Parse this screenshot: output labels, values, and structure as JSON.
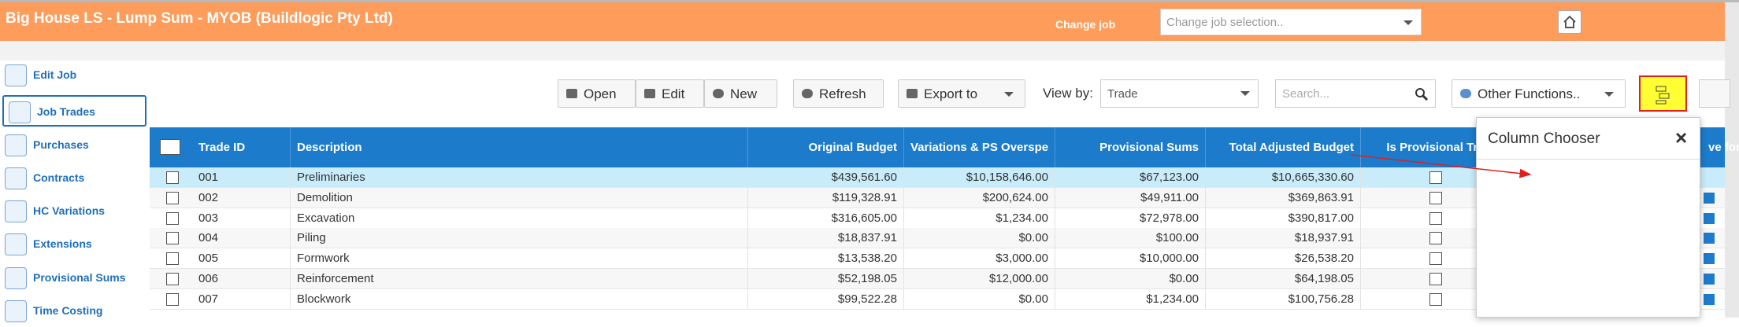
{
  "header": {
    "title": "Big House LS - Lump Sum - MYOB (Buildlogic Pty Ltd)",
    "change_job_label": "Change job",
    "job_select_placeholder": "Change job selection.."
  },
  "sidebar": {
    "items": [
      "Edit Job",
      "Job Trades",
      "Purchases",
      "Contracts",
      "HC Variations",
      "Extensions",
      "Provisional Sums",
      "Time Costing"
    ]
  },
  "toolbar": {
    "open": "Open",
    "edit": "Edit",
    "new": "New",
    "refresh": "Refresh",
    "export": "Export to",
    "view_by_label": "View by:",
    "view_by_value": "Trade",
    "search_placeholder": "Search...",
    "other_functions": "Other Functions.."
  },
  "table": {
    "columns": [
      "Trade ID",
      "Description",
      "Original Budget",
      "Variations & PS Overspe",
      "Provisional Sums",
      "Total Adjusted Budget",
      "Is Provisional Tra",
      "ve for T"
    ],
    "rows": [
      [
        "001",
        "Preliminaries",
        "$439,561.60",
        "$10,158,646.00",
        "$67,123.00",
        "$10,665,330.60"
      ],
      [
        "002",
        "Demolition",
        "$119,328.91",
        "$200,624.00",
        "$49,911.00",
        "$369,863.91"
      ],
      [
        "003",
        "Excavation",
        "$316,605.00",
        "$1,234.00",
        "$72,978.00",
        "$390,817.00"
      ],
      [
        "004",
        "Piling",
        "$18,837.91",
        "$0.00",
        "$100.00",
        "$18,937.91"
      ],
      [
        "005",
        "Formwork",
        "$13,538.20",
        "$3,000.00",
        "$10,000.00",
        "$26,538.20"
      ],
      [
        "006",
        "Reinforcement",
        "$52,198.05",
        "$12,000.00",
        "$0.00",
        "$64,198.05"
      ],
      [
        "007",
        "Blockwork",
        "$99,522.28",
        "$0.00",
        "$1,234.00",
        "$100,756.28"
      ]
    ]
  },
  "column_chooser": {
    "title": "Column Chooser"
  }
}
